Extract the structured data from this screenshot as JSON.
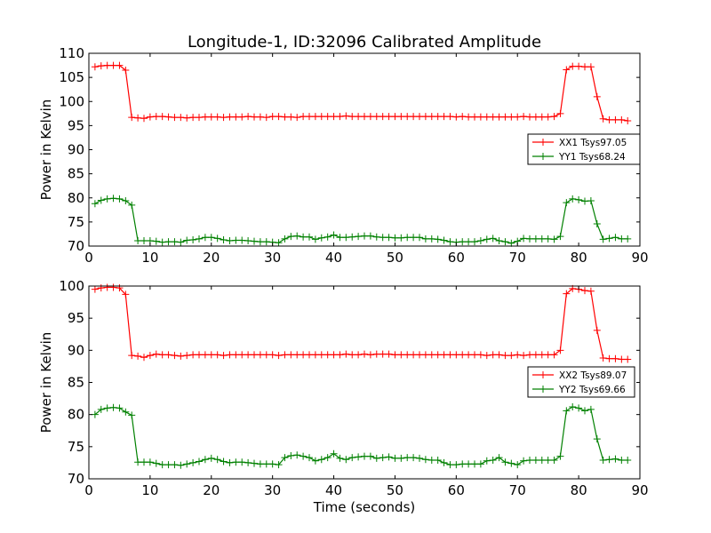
{
  "figure": {
    "title": "Longitude-1, ID:32096 Calibrated Amplitude"
  },
  "chart_data": [
    {
      "type": "line",
      "title": "Longitude-1, ID:32096 Calibrated Amplitude",
      "xlabel": "",
      "ylabel": "Power in Kelvin",
      "xlim": [
        0,
        90
      ],
      "ylim": [
        70,
        110
      ],
      "xticks": [
        0,
        10,
        20,
        30,
        40,
        50,
        60,
        70,
        80,
        90
      ],
      "yticks": [
        70,
        75,
        80,
        85,
        90,
        95,
        100,
        105,
        110
      ],
      "grid": false,
      "legend_position": "right",
      "x": [
        1,
        2,
        3,
        4,
        5,
        6,
        7,
        8,
        9,
        10,
        11,
        12,
        13,
        14,
        15,
        16,
        17,
        18,
        19,
        20,
        21,
        22,
        23,
        24,
        25,
        26,
        27,
        28,
        29,
        30,
        31,
        32,
        33,
        34,
        35,
        36,
        37,
        38,
        39,
        40,
        41,
        42,
        43,
        44,
        45,
        46,
        47,
        48,
        49,
        50,
        51,
        52,
        53,
        54,
        55,
        56,
        57,
        58,
        59,
        60,
        61,
        62,
        63,
        64,
        65,
        66,
        67,
        68,
        69,
        70,
        71,
        72,
        73,
        74,
        75,
        76,
        77,
        78,
        79,
        80,
        81,
        82,
        83,
        84,
        85,
        86,
        87,
        88
      ],
      "series": [
        {
          "name": "XX1 Tsys97.05",
          "color": "#ff0000",
          "values": [
            107.2,
            107.4,
            107.5,
            107.5,
            107.5,
            106.5,
            96.7,
            96.6,
            96.5,
            96.8,
            96.9,
            96.9,
            96.8,
            96.7,
            96.7,
            96.6,
            96.7,
            96.7,
            96.8,
            96.8,
            96.8,
            96.7,
            96.8,
            96.8,
            96.8,
            96.9,
            96.8,
            96.8,
            96.7,
            96.9,
            96.9,
            96.8,
            96.8,
            96.7,
            96.9,
            96.9,
            96.9,
            96.9,
            96.9,
            96.9,
            96.9,
            97.0,
            96.9,
            96.9,
            96.9,
            96.9,
            96.9,
            96.9,
            96.9,
            96.9,
            96.9,
            96.9,
            96.9,
            96.9,
            96.9,
            96.9,
            96.9,
            96.9,
            96.9,
            96.8,
            96.9,
            96.8,
            96.8,
            96.8,
            96.8,
            96.8,
            96.8,
            96.8,
            96.8,
            96.8,
            96.9,
            96.8,
            96.8,
            96.8,
            96.8,
            96.9,
            97.5,
            106.6,
            107.3,
            107.3,
            107.2,
            107.2,
            101.0,
            96.4,
            96.2,
            96.2,
            96.2,
            96.0
          ]
        },
        {
          "name": "YY1 Tsys68.24",
          "color": "#008000",
          "values": [
            78.8,
            79.5,
            79.8,
            79.9,
            79.8,
            79.4,
            78.5,
            71.1,
            71.1,
            71.1,
            71.0,
            70.8,
            70.9,
            70.9,
            70.8,
            71.2,
            71.3,
            71.5,
            71.8,
            71.8,
            71.6,
            71.3,
            71.1,
            71.2,
            71.2,
            71.1,
            71.0,
            70.9,
            70.9,
            70.8,
            70.7,
            71.5,
            72.0,
            72.1,
            71.9,
            71.9,
            71.4,
            71.7,
            71.9,
            72.3,
            71.8,
            71.8,
            71.9,
            72.0,
            72.1,
            72.1,
            71.9,
            71.8,
            71.8,
            71.7,
            71.7,
            71.8,
            71.8,
            71.8,
            71.5,
            71.5,
            71.4,
            71.2,
            70.9,
            70.8,
            70.9,
            70.9,
            70.9,
            71.1,
            71.4,
            71.6,
            71.1,
            70.9,
            70.6,
            71.0,
            71.6,
            71.5,
            71.5,
            71.5,
            71.5,
            71.4,
            72.0,
            79.0,
            79.8,
            79.6,
            79.3,
            79.4,
            74.6,
            71.4,
            71.6,
            71.8,
            71.5,
            71.5
          ]
        }
      ],
      "legend": [
        "XX1 Tsys97.05",
        "YY1 Tsys68.24"
      ]
    },
    {
      "type": "line",
      "title": "",
      "xlabel": "Time (seconds)",
      "ylabel": "Power in Kelvin",
      "xlim": [
        0,
        90
      ],
      "ylim": [
        70,
        100
      ],
      "xticks": [
        0,
        10,
        20,
        30,
        40,
        50,
        60,
        70,
        80,
        90
      ],
      "yticks": [
        70,
        75,
        80,
        85,
        90,
        95,
        100
      ],
      "grid": false,
      "legend_position": "right",
      "x": [
        1,
        2,
        3,
        4,
        5,
        6,
        7,
        8,
        9,
        10,
        11,
        12,
        13,
        14,
        15,
        16,
        17,
        18,
        19,
        20,
        21,
        22,
        23,
        24,
        25,
        26,
        27,
        28,
        29,
        30,
        31,
        32,
        33,
        34,
        35,
        36,
        37,
        38,
        39,
        40,
        41,
        42,
        43,
        44,
        45,
        46,
        47,
        48,
        49,
        50,
        51,
        52,
        53,
        54,
        55,
        56,
        57,
        58,
        59,
        60,
        61,
        62,
        63,
        64,
        65,
        66,
        67,
        68,
        69,
        70,
        71,
        72,
        73,
        74,
        75,
        76,
        77,
        78,
        79,
        80,
        81,
        82,
        83,
        84,
        85,
        86,
        87,
        88
      ],
      "series": [
        {
          "name": "XX2 Tsys89.07",
          "color": "#ff0000",
          "values": [
            99.5,
            99.7,
            99.8,
            99.8,
            99.7,
            98.7,
            89.2,
            89.1,
            88.9,
            89.2,
            89.4,
            89.3,
            89.3,
            89.2,
            89.1,
            89.2,
            89.3,
            89.3,
            89.3,
            89.3,
            89.3,
            89.2,
            89.3,
            89.3,
            89.3,
            89.3,
            89.3,
            89.3,
            89.3,
            89.3,
            89.2,
            89.3,
            89.3,
            89.3,
            89.3,
            89.3,
            89.3,
            89.3,
            89.3,
            89.3,
            89.3,
            89.4,
            89.3,
            89.3,
            89.4,
            89.3,
            89.4,
            89.4,
            89.4,
            89.3,
            89.3,
            89.3,
            89.3,
            89.3,
            89.3,
            89.3,
            89.3,
            89.3,
            89.3,
            89.3,
            89.3,
            89.3,
            89.3,
            89.3,
            89.2,
            89.3,
            89.3,
            89.2,
            89.2,
            89.3,
            89.2,
            89.3,
            89.3,
            89.3,
            89.3,
            89.3,
            90.0,
            98.8,
            99.6,
            99.5,
            99.3,
            99.2,
            93.1,
            88.8,
            88.7,
            88.7,
            88.6,
            88.6
          ]
        },
        {
          "name": "YY2 Tsys69.66",
          "color": "#008000",
          "values": [
            80.0,
            80.8,
            81.0,
            81.1,
            81.0,
            80.4,
            79.9,
            72.6,
            72.6,
            72.6,
            72.4,
            72.2,
            72.2,
            72.2,
            72.1,
            72.3,
            72.5,
            72.7,
            73.0,
            73.2,
            73.0,
            72.7,
            72.5,
            72.6,
            72.6,
            72.5,
            72.4,
            72.3,
            72.3,
            72.3,
            72.2,
            73.3,
            73.6,
            73.7,
            73.5,
            73.3,
            72.8,
            73.0,
            73.3,
            73.9,
            73.2,
            73.0,
            73.3,
            73.4,
            73.5,
            73.5,
            73.2,
            73.3,
            73.4,
            73.2,
            73.2,
            73.3,
            73.3,
            73.2,
            73.0,
            72.9,
            72.9,
            72.5,
            72.2,
            72.2,
            72.3,
            72.3,
            72.3,
            72.3,
            72.8,
            72.9,
            73.3,
            72.6,
            72.4,
            72.2,
            72.8,
            72.9,
            72.9,
            72.9,
            72.9,
            72.9,
            73.5,
            80.6,
            81.2,
            81.0,
            80.6,
            80.8,
            76.2,
            72.9,
            73.0,
            73.1,
            72.9,
            72.9
          ]
        }
      ],
      "legend": [
        "XX2 Tsys89.07",
        "YY2 Tsys69.66"
      ]
    }
  ]
}
